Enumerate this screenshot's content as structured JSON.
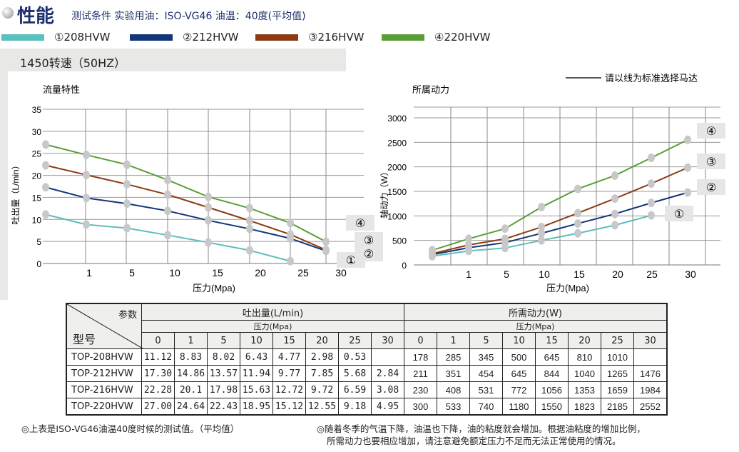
{
  "header": {
    "title": "性能",
    "conditions": "测试条件 实验用油：ISO-VG46 油温：40度(平均值)"
  },
  "legend": [
    {
      "label": "①208HVW",
      "color": "#5bbfbd"
    },
    {
      "label": "②212HVW",
      "color": "#12357a"
    },
    {
      "label": "③216HVW",
      "color": "#8b3a12"
    },
    {
      "label": "④220HVW",
      "color": "#5a9e36"
    }
  ],
  "speed_tab": "1450转速（50HZ）",
  "guide_note": "请以线为标准选择马达",
  "chart_data": [
    {
      "type": "line",
      "title": "流量特性",
      "xlabel": "压力(Mpa)",
      "ylabel": "吐出量（L/min）",
      "categories": [
        "0",
        "1",
        "5",
        "10",
        "15",
        "20",
        "25",
        "30"
      ],
      "x_tick_labels": [
        "1",
        "5",
        "10",
        "15",
        "20",
        "25",
        "30"
      ],
      "yticks": [
        "0",
        "5",
        "10",
        "15",
        "20",
        "25",
        "30",
        "35"
      ],
      "ylim": [
        0,
        35
      ],
      "grid": true,
      "series": [
        {
          "name": "①",
          "values": [
            11.12,
            8.83,
            8.02,
            6.43,
            4.77,
            2.98,
            0.53,
            null
          ]
        },
        {
          "name": "②",
          "values": [
            17.3,
            14.86,
            13.57,
            11.94,
            9.77,
            7.85,
            5.68,
            2.84
          ]
        },
        {
          "name": "③",
          "values": [
            22.28,
            20.1,
            17.98,
            15.63,
            12.72,
            9.72,
            6.59,
            3.08
          ]
        },
        {
          "name": "④",
          "values": [
            27.0,
            24.64,
            22.43,
            18.95,
            15.12,
            12.55,
            9.18,
            4.95
          ]
        }
      ]
    },
    {
      "type": "line",
      "title": "所属动力",
      "xlabel": "压力(Mpa)",
      "ylabel": "轴动力（W）",
      "categories": [
        "0",
        "1",
        "5",
        "10",
        "15",
        "20",
        "25",
        "30"
      ],
      "x_tick_labels": [
        "1",
        "5",
        "10",
        "15",
        "20",
        "25",
        "30"
      ],
      "yticks": [
        "0",
        "500",
        "1000",
        "1500",
        "2000",
        "2500",
        "3000"
      ],
      "ylim": [
        0,
        3000
      ],
      "grid": true,
      "series": [
        {
          "name": "①",
          "values": [
            178,
            285,
            345,
            500,
            645,
            810,
            1010,
            null
          ]
        },
        {
          "name": "②",
          "values": [
            211,
            351,
            454,
            645,
            844,
            1040,
            1265,
            1476
          ]
        },
        {
          "name": "③",
          "values": [
            230,
            408,
            531,
            772,
            1056,
            1353,
            1659,
            1984
          ]
        },
        {
          "name": "④",
          "values": [
            300,
            533,
            740,
            1180,
            1550,
            1823,
            2185,
            2552
          ]
        }
      ]
    }
  ],
  "table": {
    "corner_top": "参数",
    "corner_bottom": "型号",
    "flow_header": "吐出量(L/min)",
    "power_header": "所需动力(W)",
    "pressure_label": "压力(Mpa)",
    "pressures": [
      "0",
      "1",
      "5",
      "10",
      "15",
      "20",
      "25",
      "30"
    ],
    "rows": [
      {
        "model": "TOP-208HVW",
        "flow": [
          "11.12",
          "8.83",
          "8.02",
          "6.43",
          "4.77",
          "2.98",
          "0.53",
          ""
        ],
        "power": [
          "178",
          "285",
          "345",
          "500",
          "645",
          "810",
          "1010",
          ""
        ]
      },
      {
        "model": "TOP-212HVW",
        "flow": [
          "17.30",
          "14.86",
          "13.57",
          "11.94",
          "9.77",
          "7.85",
          "5.68",
          "2.84"
        ],
        "power": [
          "211",
          "351",
          "454",
          "645",
          "844",
          "1040",
          "1265",
          "1476"
        ]
      },
      {
        "model": "TOP-216HVW",
        "flow": [
          "22.28",
          "20.1",
          "17.98",
          "15.63",
          "12.72",
          "9.72",
          "6.59",
          "3.08"
        ],
        "power": [
          "230",
          "408",
          "531",
          "772",
          "1056",
          "1353",
          "1659",
          "1984"
        ]
      },
      {
        "model": "TOP-220HVW",
        "flow": [
          "27.00",
          "24.64",
          "22.43",
          "18.95",
          "15.12",
          "12.55",
          "9.18",
          "4.95"
        ],
        "power": [
          "300",
          "533",
          "740",
          "1180",
          "1550",
          "1823",
          "2185",
          "2552"
        ]
      }
    ]
  },
  "notes": {
    "left": "◎上表是ISO-VG46油温40度时候的测试值。（平均值）",
    "right_1": "◎随着冬季的气温下降，油温也下降，油的粘度就会增加。根据油粘度的增加比例，",
    "right_2": "所需动力也要相应增加，请注意避免额定压力不足而无法正常使用的情况。"
  }
}
